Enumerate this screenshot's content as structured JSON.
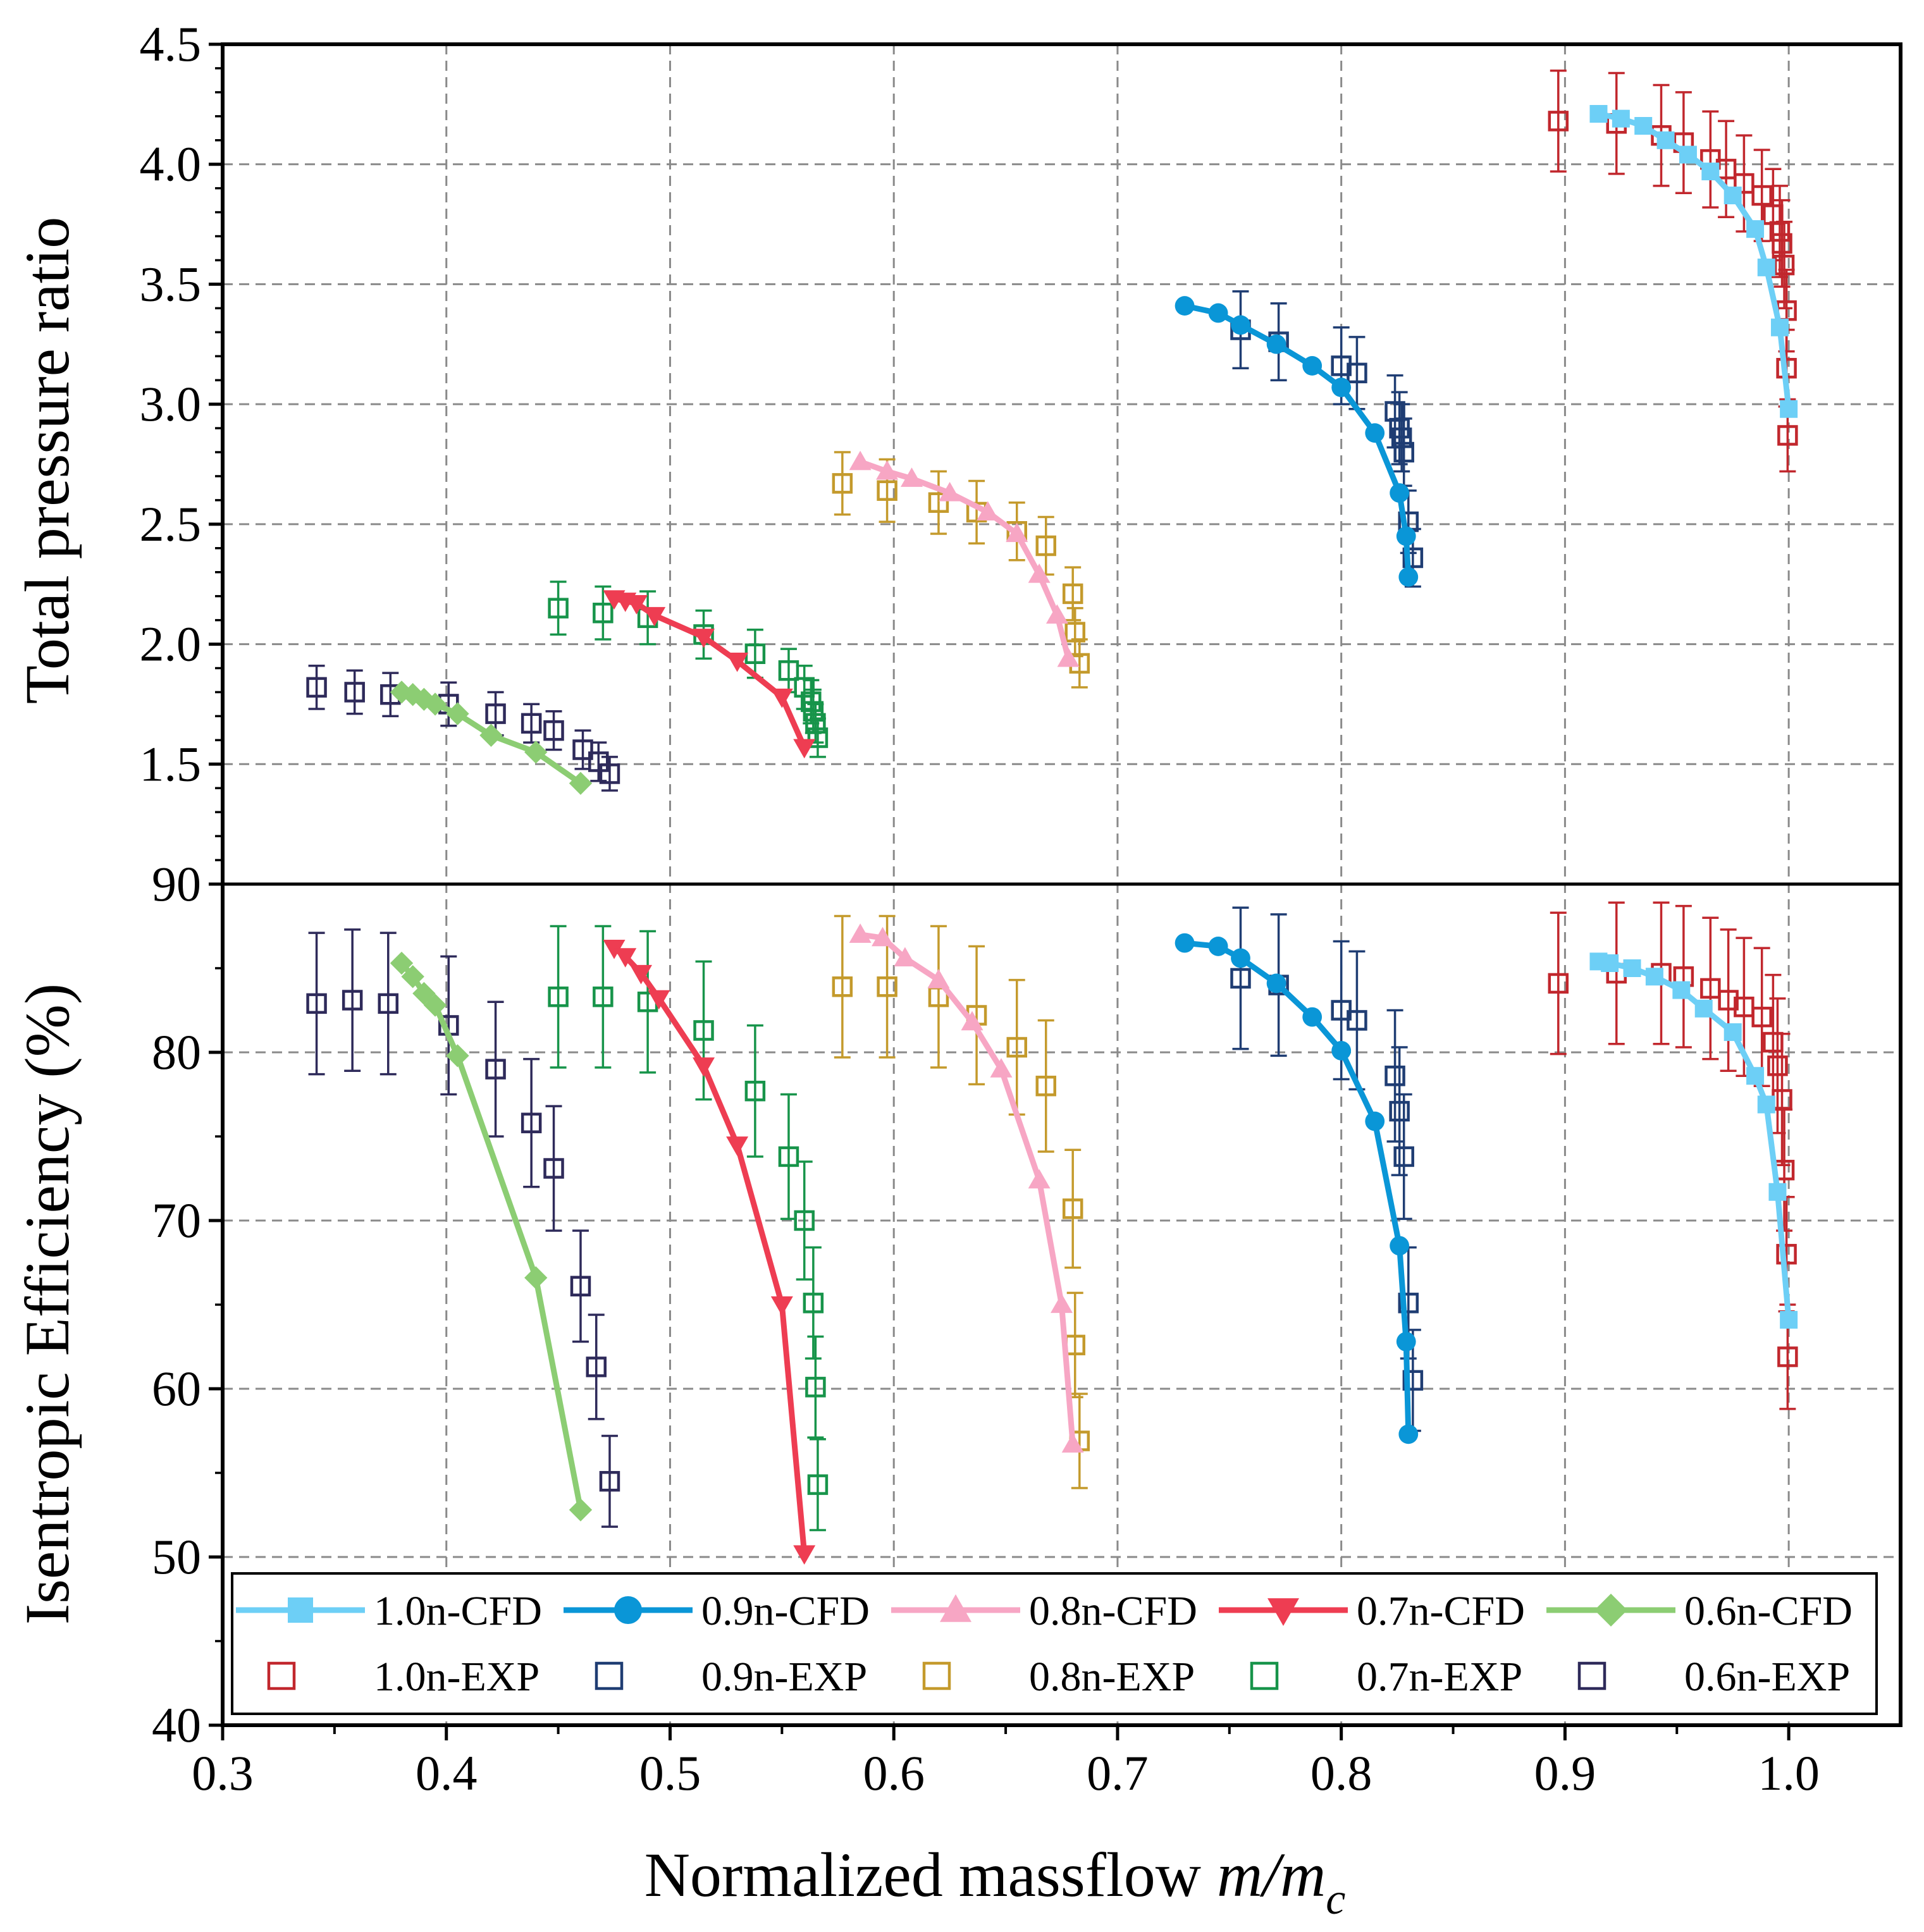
{
  "chart_data": {
    "type": "line",
    "xlabel_prefix": "Normalized massflow ",
    "xlabel_var": "m/m",
    "xlabel_sub": "c",
    "x_range": [
      0.3,
      1.05
    ],
    "x_ticks": [
      "0.3",
      "0.4",
      "0.5",
      "0.6",
      "0.7",
      "0.8",
      "0.9",
      "1.0"
    ],
    "x_tick_values": [
      0.3,
      0.4,
      0.5,
      0.6,
      0.7,
      0.8,
      0.9,
      1.0
    ],
    "grid": true,
    "panels": [
      {
        "id": "pressure",
        "ylabel": "Total pressure ratio",
        "ylim": [
          1.0,
          4.5
        ],
        "y_ticks": [
          "1.5",
          "2.0",
          "2.5",
          "3.0",
          "3.5",
          "4.0",
          "4.5"
        ],
        "y_tick_values": [
          1.5,
          2.0,
          2.5,
          3.0,
          3.5,
          4.0,
          4.5
        ]
      },
      {
        "id": "efficiency",
        "ylabel": "Isentropic Efficiency (%)",
        "ylim": [
          40,
          90
        ],
        "y_ticks": [
          "40",
          "50",
          "60",
          "70",
          "80",
          "90"
        ],
        "y_tick_values": [
          40,
          50,
          60,
          70,
          80,
          90
        ]
      }
    ],
    "series": [
      {
        "name": "1.0n-CFD",
        "kind": "cfd",
        "marker": "square",
        "color": "#6dcff6",
        "pressure": [
          [
            0.915,
            4.21
          ],
          [
            0.925,
            4.19
          ],
          [
            0.935,
            4.16
          ],
          [
            0.945,
            4.1
          ],
          [
            0.955,
            4.04
          ],
          [
            0.965,
            3.97
          ],
          [
            0.975,
            3.87
          ],
          [
            0.985,
            3.73
          ],
          [
            0.99,
            3.57
          ],
          [
            0.996,
            3.32
          ],
          [
            1.0,
            2.98
          ]
        ],
        "efficiency": [
          [
            0.915,
            85.4
          ],
          [
            0.92,
            85.3
          ],
          [
            0.93,
            85.0
          ],
          [
            0.94,
            84.5
          ],
          [
            0.952,
            83.7
          ],
          [
            0.962,
            82.6
          ],
          [
            0.975,
            81.2
          ],
          [
            0.985,
            78.6
          ],
          [
            0.99,
            76.9
          ],
          [
            0.995,
            71.7
          ],
          [
            1.0,
            64.1
          ]
        ]
      },
      {
        "name": "0.9n-CFD",
        "kind": "cfd",
        "marker": "circle",
        "color": "#0a96d7",
        "pressure": [
          [
            0.73,
            3.41
          ],
          [
            0.745,
            3.38
          ],
          [
            0.755,
            3.33
          ],
          [
            0.771,
            3.25
          ],
          [
            0.787,
            3.16
          ],
          [
            0.8,
            3.07
          ],
          [
            0.815,
            2.88
          ],
          [
            0.826,
            2.63
          ],
          [
            0.829,
            2.45
          ],
          [
            0.83,
            2.28
          ]
        ],
        "efficiency": [
          [
            0.73,
            86.5
          ],
          [
            0.745,
            86.3
          ],
          [
            0.755,
            85.6
          ],
          [
            0.771,
            84.1
          ],
          [
            0.787,
            82.1
          ],
          [
            0.8,
            80.1
          ],
          [
            0.815,
            75.9
          ],
          [
            0.826,
            68.5
          ],
          [
            0.829,
            62.8
          ],
          [
            0.83,
            57.3
          ]
        ]
      },
      {
        "name": "0.8n-CFD",
        "kind": "cfd",
        "marker": "triangle-up",
        "color": "#f7a6c4",
        "pressure": [
          [
            0.585,
            2.76
          ],
          [
            0.597,
            2.72
          ],
          [
            0.608,
            2.69
          ],
          [
            0.625,
            2.63
          ],
          [
            0.642,
            2.55
          ],
          [
            0.655,
            2.46
          ],
          [
            0.665,
            2.29
          ],
          [
            0.673,
            2.12
          ],
          [
            0.678,
            1.94
          ]
        ],
        "efficiency": [
          [
            0.585,
            87.0
          ],
          [
            0.595,
            86.8
          ],
          [
            0.605,
            85.6
          ],
          [
            0.62,
            84.3
          ],
          [
            0.635,
            81.8
          ],
          [
            0.648,
            79.0
          ],
          [
            0.665,
            72.4
          ],
          [
            0.675,
            65.0
          ],
          [
            0.68,
            56.7
          ]
        ]
      },
      {
        "name": "0.7n-CFD",
        "kind": "cfd",
        "marker": "triangle-down",
        "color": "#ee3d52",
        "pressure": [
          [
            0.475,
            2.19
          ],
          [
            0.48,
            2.18
          ],
          [
            0.485,
            2.17
          ],
          [
            0.493,
            2.12
          ],
          [
            0.515,
            2.03
          ],
          [
            0.53,
            1.93
          ],
          [
            0.55,
            1.78
          ],
          [
            0.56,
            1.57
          ]
        ],
        "efficiency": [
          [
            0.475,
            86.2
          ],
          [
            0.48,
            85.7
          ],
          [
            0.487,
            84.7
          ],
          [
            0.495,
            83.2
          ],
          [
            0.515,
            79.2
          ],
          [
            0.53,
            74.5
          ],
          [
            0.55,
            65.0
          ],
          [
            0.56,
            50.2
          ]
        ]
      },
      {
        "name": "0.6n-CFD",
        "kind": "cfd",
        "marker": "diamond",
        "color": "#8ccd73",
        "pressure": [
          [
            0.38,
            1.8
          ],
          [
            0.385,
            1.79
          ],
          [
            0.39,
            1.77
          ],
          [
            0.395,
            1.75
          ],
          [
            0.405,
            1.71
          ],
          [
            0.42,
            1.62
          ],
          [
            0.44,
            1.55
          ],
          [
            0.46,
            1.42
          ]
        ],
        "efficiency": [
          [
            0.38,
            85.3
          ],
          [
            0.385,
            84.5
          ],
          [
            0.39,
            83.5
          ],
          [
            0.395,
            82.8
          ],
          [
            0.405,
            79.8
          ],
          [
            0.44,
            66.6
          ],
          [
            0.46,
            52.8
          ]
        ]
      },
      {
        "name": "1.0n-EXP",
        "kind": "exp",
        "marker": "square-open",
        "color": "#c1272d",
        "pressure": [
          [
            0.897,
            4.18,
            0.21
          ],
          [
            0.923,
            4.17,
            0.21
          ],
          [
            0.943,
            4.12,
            0.21
          ],
          [
            0.953,
            4.09,
            0.21
          ],
          [
            0.965,
            4.02,
            0.2
          ],
          [
            0.972,
            3.98,
            0.2
          ],
          [
            0.98,
            3.92,
            0.2
          ],
          [
            0.988,
            3.87,
            0.19
          ],
          [
            0.993,
            3.79,
            0.19
          ],
          [
            0.996,
            3.72,
            0.19
          ],
          [
            0.997,
            3.67,
            0.18
          ],
          [
            0.998,
            3.58,
            0.18
          ],
          [
            0.999,
            3.39,
            0.17
          ],
          [
            0.999,
            3.15,
            0.16
          ],
          [
            0.9995,
            2.87,
            0.15
          ]
        ],
        "efficiency": [
          [
            0.897,
            84.1,
            4.2
          ],
          [
            0.923,
            84.7,
            4.2
          ],
          [
            0.943,
            84.7,
            4.2
          ],
          [
            0.953,
            84.5,
            4.2
          ],
          [
            0.965,
            83.8,
            4.2
          ],
          [
            0.973,
            83.1,
            4.2
          ],
          [
            0.98,
            82.7,
            4.1
          ],
          [
            0.988,
            82.1,
            4.1
          ],
          [
            0.993,
            80.6,
            4.0
          ],
          [
            0.995,
            79.2,
            4.0
          ],
          [
            0.997,
            77.2,
            3.9
          ],
          [
            0.998,
            73.0,
            3.6
          ],
          [
            0.999,
            68.0,
            3.4
          ],
          [
            0.9995,
            61.9,
            3.1
          ]
        ]
      },
      {
        "name": "0.9n-EXP",
        "kind": "exp",
        "marker": "square-open",
        "color": "#1f3d73",
        "pressure": [
          [
            0.755,
            3.31,
            0.16
          ],
          [
            0.772,
            3.26,
            0.16
          ],
          [
            0.8,
            3.16,
            0.16
          ],
          [
            0.807,
            3.13,
            0.15
          ],
          [
            0.824,
            2.97,
            0.15
          ],
          [
            0.826,
            2.9,
            0.15
          ],
          [
            0.827,
            2.86,
            0.14
          ],
          [
            0.828,
            2.8,
            0.14
          ],
          [
            0.83,
            2.51,
            0.13
          ],
          [
            0.832,
            2.36,
            0.12
          ]
        ],
        "efficiency": [
          [
            0.755,
            84.4,
            4.2
          ],
          [
            0.772,
            84.0,
            4.2
          ],
          [
            0.8,
            82.5,
            4.1
          ],
          [
            0.807,
            81.9,
            4.1
          ],
          [
            0.824,
            78.6,
            3.9
          ],
          [
            0.826,
            76.5,
            3.8
          ],
          [
            0.828,
            73.8,
            3.7
          ],
          [
            0.83,
            65.1,
            3.3
          ],
          [
            0.832,
            60.5,
            3.0
          ]
        ]
      },
      {
        "name": "0.8n-EXP",
        "kind": "exp",
        "marker": "square-open",
        "color": "#c49a2c",
        "pressure": [
          [
            0.577,
            2.67,
            0.13
          ],
          [
            0.597,
            2.64,
            0.13
          ],
          [
            0.62,
            2.59,
            0.13
          ],
          [
            0.637,
            2.55,
            0.13
          ],
          [
            0.655,
            2.47,
            0.12
          ],
          [
            0.668,
            2.41,
            0.12
          ],
          [
            0.68,
            2.21,
            0.11
          ],
          [
            0.681,
            2.05,
            0.1
          ],
          [
            0.683,
            1.92,
            0.1
          ]
        ],
        "efficiency": [
          [
            0.577,
            83.9,
            4.2
          ],
          [
            0.597,
            83.9,
            4.2
          ],
          [
            0.62,
            83.3,
            4.2
          ],
          [
            0.637,
            82.2,
            4.1
          ],
          [
            0.655,
            80.3,
            4.0
          ],
          [
            0.668,
            78.0,
            3.9
          ],
          [
            0.68,
            70.7,
            3.5
          ],
          [
            0.681,
            62.6,
            3.1
          ],
          [
            0.683,
            56.9,
            2.8
          ]
        ]
      },
      {
        "name": "0.7n-EXP",
        "kind": "exp",
        "marker": "square-open",
        "color": "#17944a",
        "pressure": [
          [
            0.45,
            2.15,
            0.11
          ],
          [
            0.47,
            2.13,
            0.11
          ],
          [
            0.49,
            2.11,
            0.11
          ],
          [
            0.515,
            2.04,
            0.1
          ],
          [
            0.538,
            1.96,
            0.1
          ],
          [
            0.553,
            1.89,
            0.09
          ],
          [
            0.56,
            1.82,
            0.09
          ],
          [
            0.563,
            1.76,
            0.09
          ],
          [
            0.564,
            1.72,
            0.09
          ],
          [
            0.565,
            1.67,
            0.08
          ],
          [
            0.566,
            1.61,
            0.08
          ]
        ],
        "efficiency": [
          [
            0.45,
            83.3,
            4.2
          ],
          [
            0.47,
            83.3,
            4.2
          ],
          [
            0.49,
            83.0,
            4.2
          ],
          [
            0.515,
            81.3,
            4.1
          ],
          [
            0.538,
            77.7,
            3.9
          ],
          [
            0.553,
            73.8,
            3.7
          ],
          [
            0.56,
            70.0,
            3.5
          ],
          [
            0.564,
            65.1,
            3.3
          ],
          [
            0.565,
            60.1,
            3.0
          ],
          [
            0.566,
            54.3,
            2.7
          ]
        ]
      },
      {
        "name": "0.6n-EXP",
        "kind": "exp",
        "marker": "square-open",
        "color": "#2e2a5a",
        "pressure": [
          [
            0.342,
            1.82,
            0.09
          ],
          [
            0.359,
            1.8,
            0.09
          ],
          [
            0.375,
            1.79,
            0.09
          ],
          [
            0.401,
            1.75,
            0.09
          ],
          [
            0.422,
            1.71,
            0.09
          ],
          [
            0.438,
            1.67,
            0.08
          ],
          [
            0.448,
            1.64,
            0.08
          ],
          [
            0.461,
            1.56,
            0.08
          ],
          [
            0.468,
            1.51,
            0.08
          ],
          [
            0.473,
            1.46,
            0.07
          ]
        ],
        "efficiency": [
          [
            0.342,
            82.9,
            4.2
          ],
          [
            0.358,
            83.1,
            4.2
          ],
          [
            0.374,
            82.9,
            4.2
          ],
          [
            0.401,
            81.6,
            4.1
          ],
          [
            0.422,
            79.0,
            4.0
          ],
          [
            0.438,
            75.8,
            3.8
          ],
          [
            0.448,
            73.1,
            3.7
          ],
          [
            0.46,
            66.1,
            3.3
          ],
          [
            0.467,
            61.3,
            3.1
          ],
          [
            0.473,
            54.5,
            2.7
          ]
        ]
      }
    ],
    "legend": {
      "placement": "bottom",
      "rows": [
        [
          "1.0n-CFD",
          "0.9n-CFD",
          "0.8n-CFD",
          "0.7n-CFD",
          "0.6n-CFD"
        ],
        [
          "1.0n-EXP",
          "0.9n-EXP",
          "0.8n-EXP",
          "0.7n-EXP",
          "0.6n-EXP"
        ]
      ]
    }
  }
}
